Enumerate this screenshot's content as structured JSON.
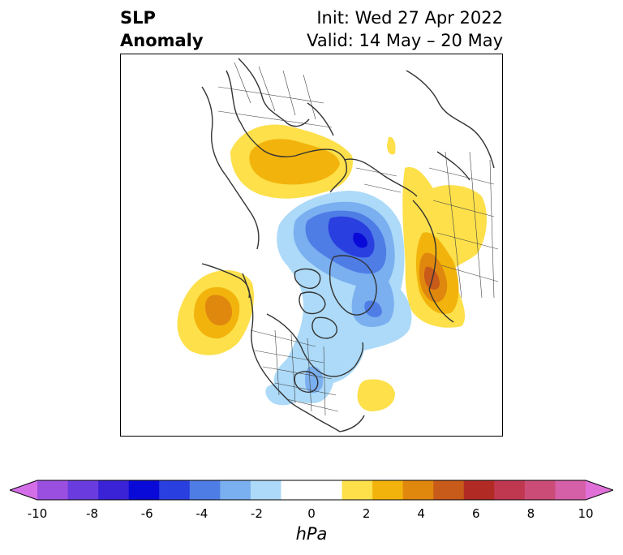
{
  "title": {
    "left_line1": "SLP",
    "left_line2": "Anomaly",
    "right_line1": "Init: Wed 27 Apr 2022",
    "right_line2": "Valid: 14 May – 20 May"
  },
  "map": {
    "projection": "north-polar-stereographic",
    "field": "sea-level-pressure-anomaly",
    "coastline_color": "#333333",
    "boundary_color": "#444444",
    "anomaly_features": [
      {
        "name": "scandinavia-positive-anomaly",
        "sign": "positive",
        "max_hpa": 4
      },
      {
        "name": "arctic-canada-negative-anomaly",
        "sign": "negative",
        "min_hpa": -6
      },
      {
        "name": "siberia-positive-anomaly",
        "sign": "positive",
        "max_hpa": 6
      },
      {
        "name": "gulf-of-alaska-positive-anomaly",
        "sign": "positive",
        "max_hpa": 4
      },
      {
        "name": "hudson-bay-negative-anomaly",
        "sign": "negative",
        "min_hpa": -3
      },
      {
        "name": "north-atlantic-positive-anomaly",
        "sign": "positive",
        "max_hpa": 2
      }
    ]
  },
  "colorbar": {
    "unit": "hPa",
    "min": -10,
    "max": 10,
    "extend": "both",
    "ticks": [
      "-10",
      "-8",
      "-6",
      "-4",
      "-2",
      "0",
      "2",
      "4",
      "6",
      "8",
      "10"
    ],
    "colors": [
      "#d46ee8",
      "#9b4fe0",
      "#6a3ce0",
      "#3a22d6",
      "#0a0ad8",
      "#2a3fe0",
      "#4f7de6",
      "#7aaff0",
      "#acdaf8",
      "#ffffff",
      "#ffffff",
      "#fde04a",
      "#f2b40c",
      "#e0880e",
      "#c85a1a",
      "#b22a24",
      "#c03850",
      "#cc4c78",
      "#d660a8",
      "#e070d8"
    ]
  }
}
